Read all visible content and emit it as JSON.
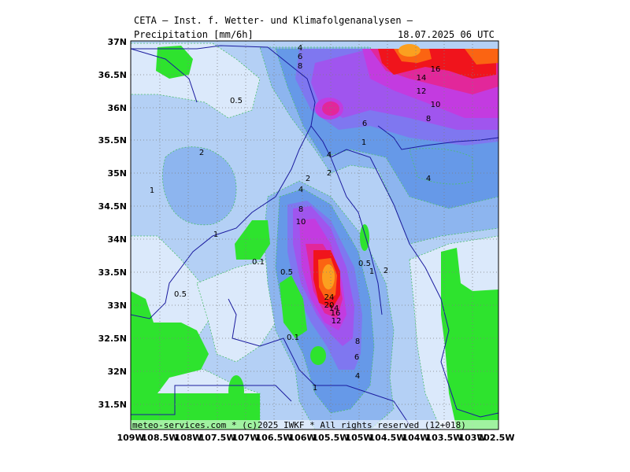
{
  "header": {
    "title": "CETA — Inst. f. Wetter- und Klimafolgenanalysen —",
    "field": "Precipitation [mm/6h]",
    "valid_time": "18.07.2025 06 UTC"
  },
  "footer": {
    "credit": "meteo-services.com * (c)2025 IWKF * All rights reserved (12+018)"
  },
  "axes": {
    "lon_labels": [
      "109W",
      "108.5W",
      "108W",
      "107.5W",
      "107W",
      "106.5W",
      "106W",
      "105.5W",
      "105W",
      "104.5W",
      "104W",
      "103.5W",
      "103W",
      "102.5W"
    ],
    "lat_labels": [
      "37N",
      "36.5N",
      "36N",
      "35.5N",
      "35N",
      "34.5N",
      "34N",
      "33.5N",
      "33N",
      "32.5N",
      "32N",
      "31.5N"
    ]
  },
  "contour_labels": [
    "4",
    "6",
    "8",
    "0.5",
    "6",
    "1",
    "4",
    "2",
    "2",
    "4",
    "4",
    "8",
    "10",
    "2",
    "1",
    "1",
    "0.5",
    "0.1",
    "0.5",
    "1",
    "2",
    "24",
    "20",
    "16",
    "14",
    "12",
    "0.5",
    "0.1",
    "8",
    "6",
    "4",
    "1",
    "16",
    "14",
    "12",
    "10",
    "8"
  ],
  "colors": {
    "green": "#2ee32e",
    "very_light_blue": "#dbe9fb",
    "light_blue": "#b4d0f5",
    "mid_blue": "#8db5ef",
    "blue": "#6699e8",
    "violet_blue": "#7f77f0",
    "purple": "#a055ee",
    "magenta": "#c33be0",
    "pink": "#e2279a",
    "red": "#f0141c",
    "orange": "#fb6412",
    "yellow_orange": "#fba020",
    "border": "#1a1a9e",
    "grid": "#7f7f7f"
  }
}
